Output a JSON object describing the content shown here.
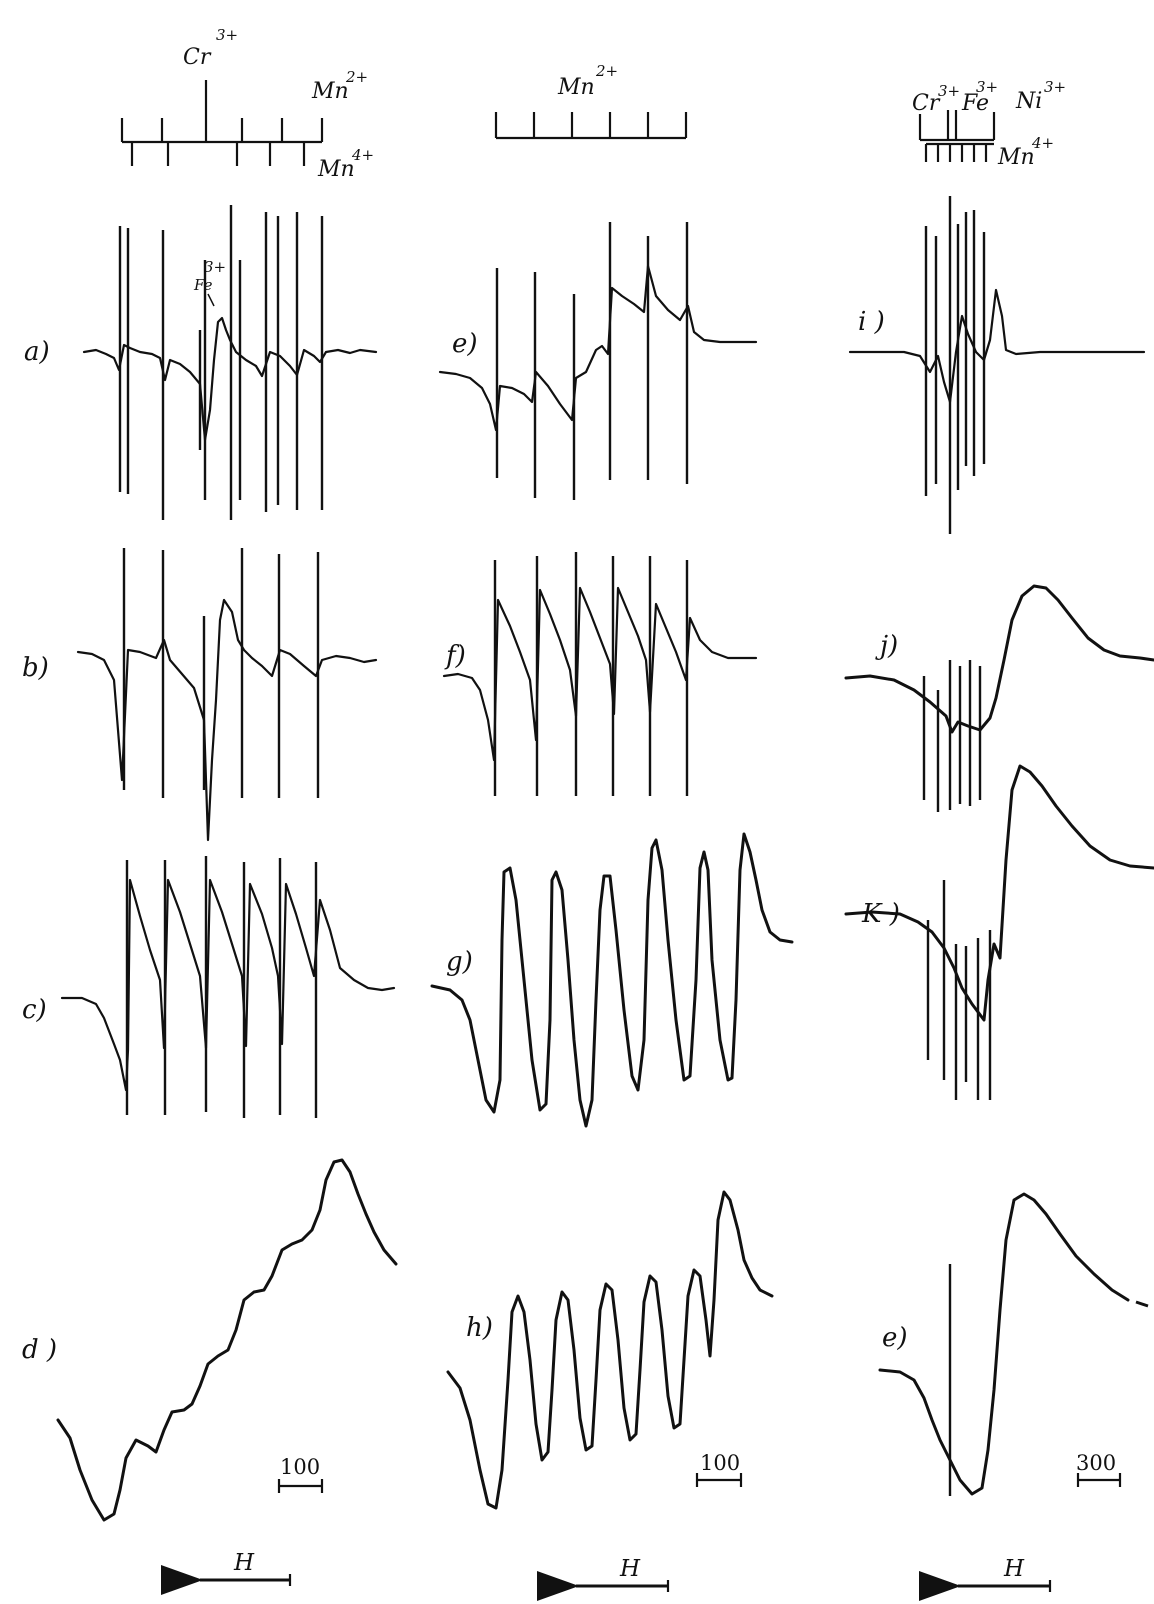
{
  "figure": {
    "columns": [
      {
        "ions_top": [
          {
            "name": "Cr",
            "charge": "3+"
          },
          {
            "name": "Mn",
            "charge": "2+"
          },
          {
            "name": "Mn",
            "charge": "4+"
          }
        ],
        "panels": [
          "a)",
          "b)",
          "c)",
          "d )"
        ],
        "inline_label": {
          "name": "Fe",
          "charge": "3+"
        },
        "scale_bar": "100",
        "field_label": "H"
      },
      {
        "ions_top": [
          {
            "name": "Mn",
            "charge": "2+"
          }
        ],
        "panels": [
          "e)",
          "f)",
          "g)",
          "h)"
        ],
        "scale_bar": "100",
        "field_label": "H"
      },
      {
        "ions_top": [
          {
            "name": "Cr",
            "charge": "3+"
          },
          {
            "name": "Fe",
            "charge": "3+"
          },
          {
            "name": "Ni",
            "charge": "3+"
          },
          {
            "name": "Mn",
            "charge": "4+"
          }
        ],
        "panels": [
          "i )",
          "j)",
          "K )",
          "e)"
        ],
        "scale_bar": "300",
        "field_label": "H"
      }
    ]
  }
}
